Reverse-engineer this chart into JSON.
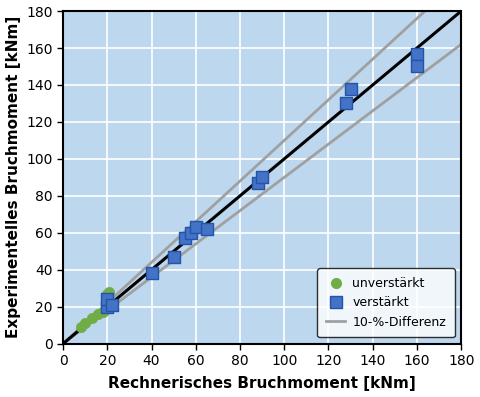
{
  "green_x": [
    8,
    10,
    13,
    16,
    18,
    19,
    20,
    21
  ],
  "green_y": [
    9,
    11,
    14,
    16,
    17,
    18,
    27,
    28
  ],
  "blue_x": [
    20,
    20,
    22,
    40,
    50,
    55,
    58,
    60,
    65,
    88,
    90,
    128,
    130,
    160,
    160
  ],
  "blue_y": [
    20,
    24,
    21,
    38,
    47,
    57,
    60,
    63,
    62,
    87,
    90,
    130,
    138,
    157,
    150
  ],
  "xlim": [
    0,
    180
  ],
  "ylim": [
    0,
    180
  ],
  "xticks": [
    0,
    20,
    40,
    60,
    80,
    100,
    120,
    140,
    160,
    180
  ],
  "yticks": [
    0,
    20,
    40,
    60,
    80,
    100,
    120,
    140,
    160,
    180
  ],
  "xlabel": "Rechnerisches Bruchmoment [kNm]",
  "ylabel": "Experimentelles Bruchmoment [kNm]",
  "green_color": "#70AD47",
  "blue_color": "#4472C4",
  "blue_edge_color": "#2255AA",
  "line_color": "#000000",
  "band_color": "#A0A0A0",
  "legend_labels": [
    "unverstärkt",
    "verstärkt",
    "10-%-Differenz"
  ],
  "background_color": "#BDD7EE",
  "grid_color": "#FFFFFF",
  "outer_background": "#FFFFFF",
  "band_factor": 0.1,
  "xlabel_fontsize": 11,
  "ylabel_fontsize": 11,
  "tick_fontsize": 10,
  "legend_fontsize": 9
}
